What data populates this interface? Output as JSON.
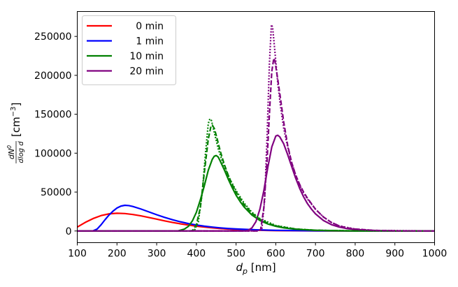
{
  "chart_data": {
    "type": "line",
    "xlabel_symbol": "d",
    "xlabel_subscript": "p",
    "xlabel_unit": " [nm]",
    "ylabel_frac_num": "dN",
    "ylabel_frac_num_sup": "0",
    "ylabel_frac_den": "dlog d",
    "ylabel_unit": "[cm",
    "ylabel_unit_sup": "−3",
    "ylabel_unit_close": "]",
    "xlim": [
      100,
      1000
    ],
    "ylim": [
      -15000,
      282000
    ],
    "xticks": [
      100,
      200,
      300,
      400,
      500,
      600,
      700,
      800,
      900,
      1000
    ],
    "yticks": [
      0,
      50000,
      100000,
      150000,
      200000,
      250000
    ],
    "xtick_labels": [
      "100",
      "200",
      "300",
      "400",
      "500",
      "600",
      "700",
      "800",
      "900",
      "1000"
    ],
    "ytick_labels": [
      "0",
      "50000",
      "100000",
      "150000",
      "200000",
      "250000"
    ],
    "grid": false,
    "legend_position": "top-left",
    "series": [
      {
        "name": "0 min",
        "color": "#ff0000",
        "style": "solid",
        "points": [
          [
            100,
            5000
          ],
          [
            120,
            11000
          ],
          [
            140,
            16000
          ],
          [
            160,
            19800
          ],
          [
            180,
            22000
          ],
          [
            200,
            22800
          ],
          [
            220,
            22400
          ],
          [
            240,
            21200
          ],
          [
            260,
            19500
          ],
          [
            280,
            17400
          ],
          [
            300,
            15200
          ],
          [
            320,
            13000
          ],
          [
            340,
            11000
          ],
          [
            360,
            9200
          ],
          [
            380,
            7600
          ],
          [
            400,
            6200
          ],
          [
            420,
            5000
          ],
          [
            440,
            4000
          ],
          [
            460,
            3200
          ],
          [
            480,
            2500
          ],
          [
            500,
            1950
          ],
          [
            550,
            1000
          ],
          [
            600,
            500
          ],
          [
            700,
            120
          ],
          [
            800,
            30
          ],
          [
            1000,
            0
          ]
        ]
      },
      {
        "name": "1 min",
        "color": "#0000ff",
        "style": "solid",
        "points": [
          [
            100,
            0
          ],
          [
            130,
            0
          ],
          [
            140,
            200
          ],
          [
            150,
            2500
          ],
          [
            160,
            8000
          ],
          [
            170,
            14500
          ],
          [
            180,
            20500
          ],
          [
            190,
            25500
          ],
          [
            200,
            29500
          ],
          [
            210,
            32000
          ],
          [
            220,
            33000
          ],
          [
            230,
            32600
          ],
          [
            240,
            31500
          ],
          [
            260,
            28300
          ],
          [
            280,
            24600
          ],
          [
            300,
            20900
          ],
          [
            320,
            17500
          ],
          [
            340,
            14400
          ],
          [
            360,
            11800
          ],
          [
            380,
            9500
          ],
          [
            400,
            7700
          ],
          [
            420,
            6200
          ],
          [
            440,
            5000
          ],
          [
            460,
            4000
          ],
          [
            480,
            3200
          ],
          [
            500,
            2600
          ],
          [
            550,
            1500
          ],
          [
            600,
            850
          ],
          [
            700,
            250
          ],
          [
            800,
            70
          ],
          [
            1000,
            0
          ]
        ]
      },
      {
        "name": "10 min",
        "color": "#008000",
        "style": "solid",
        "points": [
          [
            100,
            0
          ],
          [
            340,
            0
          ],
          [
            355,
            300
          ],
          [
            370,
            2500
          ],
          [
            380,
            6000
          ],
          [
            390,
            13000
          ],
          [
            400,
            24000
          ],
          [
            410,
            40000
          ],
          [
            420,
            58000
          ],
          [
            430,
            78000
          ],
          [
            440,
            92000
          ],
          [
            445,
            96000
          ],
          [
            450,
            97000
          ],
          [
            455,
            95000
          ],
          [
            460,
            90000
          ],
          [
            470,
            79000
          ],
          [
            480,
            67000
          ],
          [
            490,
            56000
          ],
          [
            500,
            46000
          ],
          [
            510,
            38000
          ],
          [
            520,
            31000
          ],
          [
            540,
            20500
          ],
          [
            560,
            13500
          ],
          [
            580,
            9000
          ],
          [
            600,
            6000
          ],
          [
            620,
            4000
          ],
          [
            650,
            2200
          ],
          [
            700,
            900
          ],
          [
            750,
            350
          ],
          [
            800,
            120
          ],
          [
            1000,
            0
          ]
        ]
      },
      {
        "name": "20 min",
        "color": "#800080",
        "style": "solid",
        "points": [
          [
            100,
            0
          ],
          [
            520,
            0
          ],
          [
            530,
            800
          ],
          [
            540,
            4000
          ],
          [
            550,
            12000
          ],
          [
            560,
            28000
          ],
          [
            570,
            52000
          ],
          [
            580,
            82000
          ],
          [
            590,
            108000
          ],
          [
            600,
            122000
          ],
          [
            605,
            123000
          ],
          [
            610,
            121000
          ],
          [
            620,
            112000
          ],
          [
            630,
            98000
          ],
          [
            640,
            83000
          ],
          [
            650,
            68000
          ],
          [
            660,
            55000
          ],
          [
            670,
            44000
          ],
          [
            680,
            35000
          ],
          [
            690,
            28000
          ],
          [
            700,
            22000
          ],
          [
            720,
            13500
          ],
          [
            740,
            8200
          ],
          [
            760,
            5000
          ],
          [
            780,
            3000
          ],
          [
            800,
            1800
          ],
          [
            850,
            500
          ],
          [
            900,
            150
          ],
          [
            1000,
            0
          ]
        ]
      },
      {
        "name": "",
        "color": "#008000",
        "style": "dashed",
        "points": [
          [
            100,
            0
          ],
          [
            380,
            0
          ],
          [
            390,
            500
          ],
          [
            400,
            8000
          ],
          [
            410,
            30000
          ],
          [
            420,
            75000
          ],
          [
            430,
            118000
          ],
          [
            437,
            135000
          ],
          [
            440,
            136000
          ],
          [
            445,
            132000
          ],
          [
            450,
            123000
          ],
          [
            460,
            103000
          ],
          [
            470,
            86000
          ],
          [
            480,
            72000
          ],
          [
            490,
            60000
          ],
          [
            500,
            50000
          ],
          [
            520,
            34000
          ],
          [
            540,
            23000
          ],
          [
            560,
            15000
          ],
          [
            580,
            10000
          ],
          [
            600,
            6500
          ],
          [
            650,
            2500
          ],
          [
            700,
            900
          ],
          [
            800,
            100
          ],
          [
            1000,
            0
          ]
        ]
      },
      {
        "name": "",
        "color": "#008000",
        "style": "dotted",
        "points": [
          [
            100,
            0
          ],
          [
            385,
            0
          ],
          [
            395,
            600
          ],
          [
            405,
            12000
          ],
          [
            415,
            50000
          ],
          [
            423,
            100000
          ],
          [
            430,
            138000
          ],
          [
            434,
            144000
          ],
          [
            438,
            142000
          ],
          [
            445,
            127000
          ],
          [
            455,
            106000
          ],
          [
            465,
            90000
          ],
          [
            475,
            77000
          ],
          [
            485,
            66000
          ],
          [
            500,
            52000
          ],
          [
            520,
            36000
          ],
          [
            540,
            24000
          ],
          [
            560,
            16000
          ],
          [
            600,
            7000
          ],
          [
            650,
            2600
          ],
          [
            700,
            900
          ],
          [
            800,
            100
          ],
          [
            1000,
            0
          ]
        ]
      },
      {
        "name": "",
        "color": "#800080",
        "style": "dashed",
        "points": [
          [
            100,
            0
          ],
          [
            555,
            0
          ],
          [
            562,
            2000
          ],
          [
            570,
            30000
          ],
          [
            578,
            90000
          ],
          [
            585,
            160000
          ],
          [
            590,
            205000
          ],
          [
            595,
            222000
          ],
          [
            598,
            218000
          ],
          [
            605,
            195000
          ],
          [
            612,
            170000
          ],
          [
            620,
            140000
          ],
          [
            630,
            110000
          ],
          [
            640,
            88000
          ],
          [
            650,
            72000
          ],
          [
            660,
            60000
          ],
          [
            670,
            50000
          ],
          [
            680,
            42000
          ],
          [
            690,
            35000
          ],
          [
            700,
            28000
          ],
          [
            720,
            18000
          ],
          [
            740,
            11000
          ],
          [
            760,
            6500
          ],
          [
            780,
            4000
          ],
          [
            800,
            2500
          ],
          [
            850,
            700
          ],
          [
            900,
            200
          ],
          [
            1000,
            0
          ]
        ]
      },
      {
        "name": "",
        "color": "#800080",
        "style": "dotted",
        "points": [
          [
            100,
            0
          ],
          [
            555,
            0
          ],
          [
            565,
            3000
          ],
          [
            572,
            40000
          ],
          [
            578,
            120000
          ],
          [
            584,
            215000
          ],
          [
            589,
            265000
          ],
          [
            592,
            262000
          ],
          [
            597,
            235000
          ],
          [
            605,
            190000
          ],
          [
            612,
            160000
          ],
          [
            620,
            132000
          ],
          [
            630,
            108000
          ],
          [
            640,
            88000
          ],
          [
            650,
            72000
          ],
          [
            660,
            59000
          ],
          [
            670,
            49000
          ],
          [
            680,
            41000
          ],
          [
            700,
            28000
          ],
          [
            720,
            18000
          ],
          [
            740,
            11000
          ],
          [
            760,
            6500
          ],
          [
            800,
            2500
          ],
          [
            850,
            700
          ],
          [
            1000,
            0
          ]
        ]
      }
    ]
  }
}
